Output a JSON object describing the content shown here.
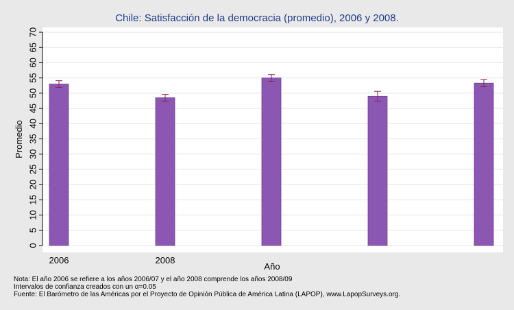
{
  "colors": {
    "page_background": "#e9e9e9",
    "plot_background": "#ffffff",
    "bar_fill": "#8b57b3",
    "bar_stroke": "#6c3f91",
    "error_bar": "#8b2252",
    "gridline": "#e5e5e5",
    "title": "#1f3a8a"
  },
  "chart_data": {
    "type": "bar",
    "title": "Chile: Satisfacción de la democracia (promedio), 2006 y 2008.",
    "xlabel": "Año",
    "ylabel": "Promedio",
    "ylim": [
      0,
      70
    ],
    "yticks": [
      0,
      5,
      10,
      15,
      20,
      25,
      30,
      35,
      40,
      45,
      50,
      55,
      60,
      65,
      70
    ],
    "categories": [
      "2006",
      "2008",
      "",
      "",
      ""
    ],
    "values": [
      53,
      48.5,
      55,
      49,
      53.3
    ],
    "ci_low": [
      51.9,
      47.4,
      53.9,
      47.4,
      52.1
    ],
    "ci_high": [
      54.1,
      49.6,
      56.1,
      50.6,
      54.5
    ],
    "grid": true,
    "legend": "none"
  },
  "notes": {
    "line1": "Nota: El año 2006 se refiere a los años 2006/07 y el año 2008 comprende los años 2008/09",
    "line2": "Intervalos de confianza creados con un α=0.05",
    "line3": "Fuente: El Barómetro de las Américas por el Proyecto de Opinión Pública de América Latina (LAPOP), www.LapopSurveys.org."
  }
}
